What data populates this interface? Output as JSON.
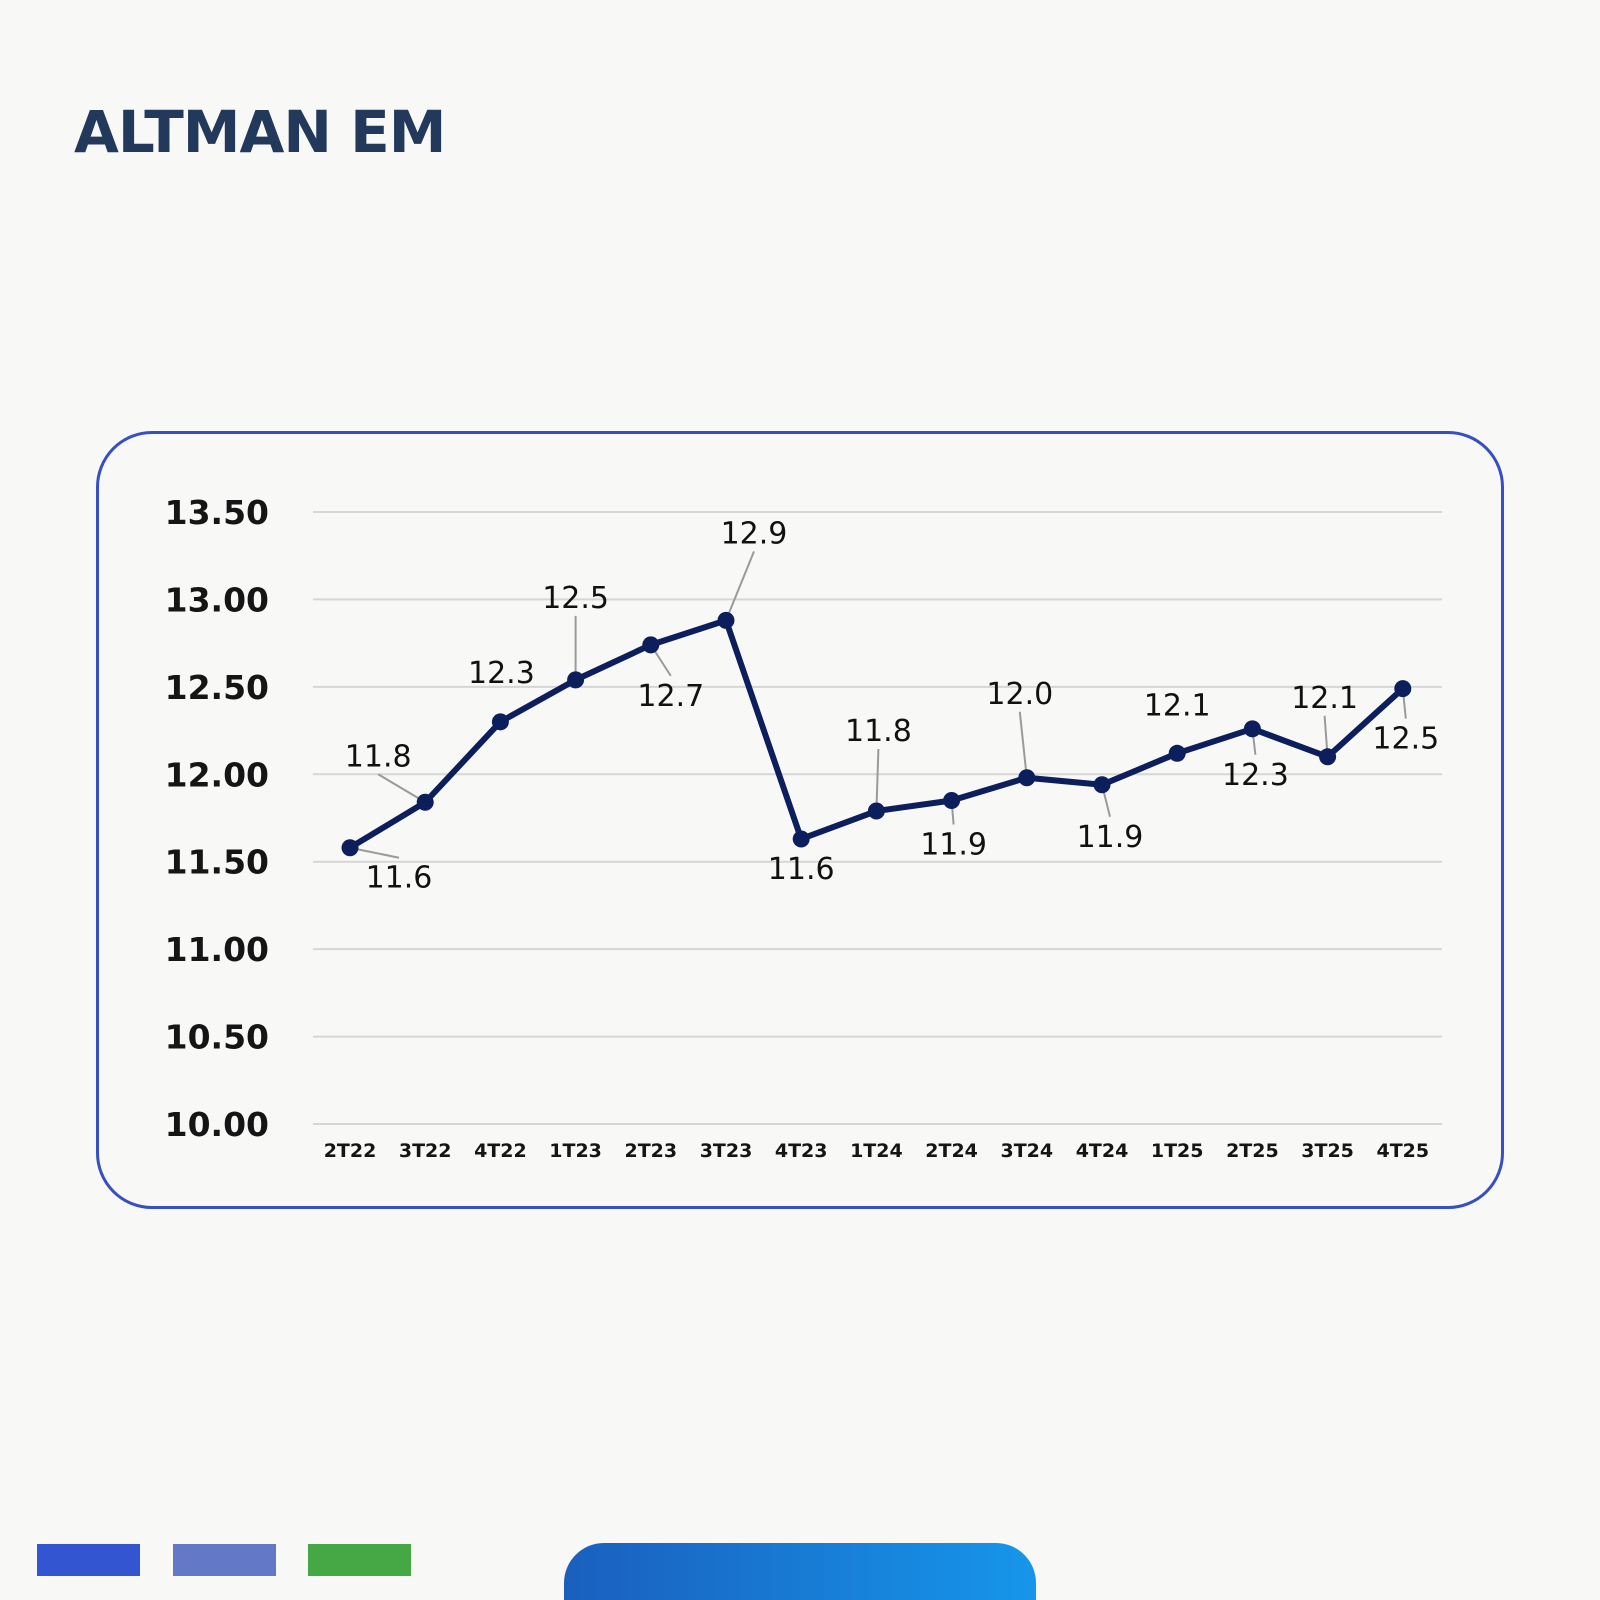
{
  "page": {
    "title": "ALTMAN EM"
  },
  "colors": {
    "title": "#23395b",
    "card_border": "#3650c2",
    "line": "#0c1e5c",
    "grid": "#d6d6d6",
    "leader": "#9a9a9a",
    "swatches": [
      "#3355d1",
      "#6478c8",
      "#46a845"
    ],
    "footer_gradient": [
      "#1a5fbe",
      "#1696ea"
    ]
  },
  "footer": {
    "swatch_count": 3,
    "tab_present": true
  },
  "chart_data": {
    "type": "line",
    "title": "",
    "xlabel": "",
    "ylabel": "",
    "categories": [
      "2T22",
      "3T22",
      "4T22",
      "1T23",
      "2T23",
      "3T23",
      "4T23",
      "1T24",
      "2T24",
      "3T24",
      "4T24",
      "1T25",
      "2T25",
      "3T25",
      "4T25"
    ],
    "series": [
      {
        "values": [
          11.58,
          11.84,
          12.3,
          12.54,
          12.74,
          12.88,
          11.63,
          11.79,
          11.85,
          11.98,
          11.94,
          12.12,
          12.26,
          12.1,
          12.49
        ],
        "data_labels": [
          "11.6",
          "11.8",
          "12.3",
          "12.5",
          "12.7",
          "12.9",
          "11.6",
          "11.8",
          "11.9",
          "12.0",
          "11.9",
          "12.1",
          "12.3",
          "12.1",
          "12.5"
        ]
      }
    ],
    "ylim": [
      10,
      13.5
    ],
    "yticks": [
      10,
      10.5,
      11,
      11.5,
      12,
      12.5,
      13,
      13.5
    ],
    "ytick_labels": [
      "10.00",
      "10.50",
      "11.00",
      "11.50",
      "12.00",
      "12.50",
      "13.00",
      "13.50"
    ],
    "grid": true,
    "legend": "none"
  }
}
